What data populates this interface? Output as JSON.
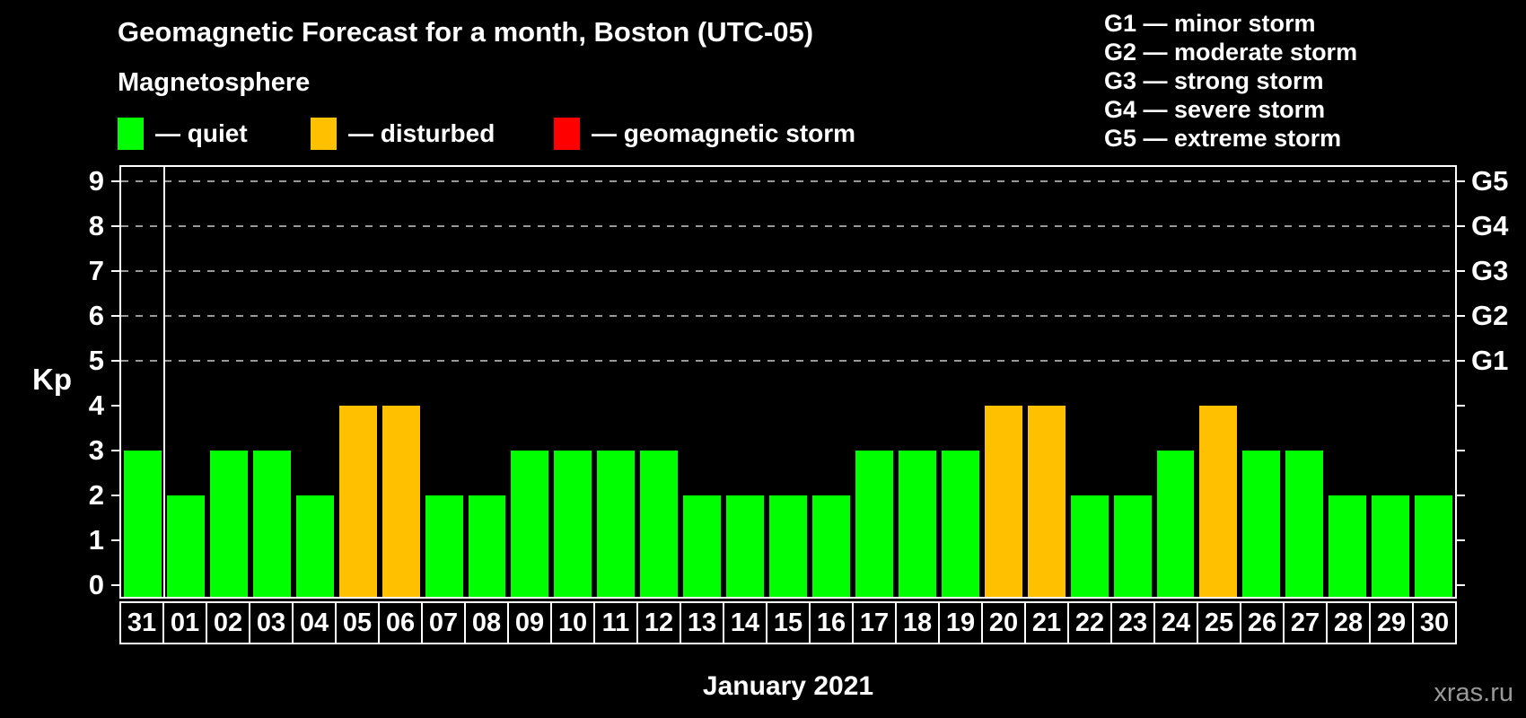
{
  "header": {
    "title": "Geomagnetic Forecast for a month, Boston (UTC-05)",
    "subtitle": "Magnetosphere"
  },
  "legend": {
    "items": [
      {
        "key": "quiet",
        "label": "— quiet",
        "color": "#00ff00"
      },
      {
        "key": "disturbed",
        "label": "— disturbed",
        "color": "#ffc000"
      },
      {
        "key": "storm",
        "label": "— geomagnetic storm",
        "color": "#ff0000"
      }
    ]
  },
  "g_legend": {
    "lines": [
      "G1 — minor storm",
      "G2 — moderate storm",
      "G3 — strong storm",
      "G4 — severe storm",
      "G5 — extreme storm"
    ]
  },
  "chart_data": {
    "type": "bar",
    "title": "Geomagnetic Forecast for a month, Boston (UTC-05)",
    "xlabel": "January 2021",
    "ylabel": "Kp",
    "ylim": [
      0,
      9
    ],
    "yticks": [
      0,
      1,
      2,
      3,
      4,
      5,
      6,
      7,
      8,
      9
    ],
    "gridlines_at": [
      5,
      6,
      7,
      8,
      9
    ],
    "grid": "dashed, horizontal, only at storm levels 5-9",
    "legend_position": "top-left",
    "right_axis_labels": [
      {
        "kp": 5,
        "label": "G1"
      },
      {
        "kp": 6,
        "label": "G2"
      },
      {
        "kp": 7,
        "label": "G3"
      },
      {
        "kp": 8,
        "label": "G4"
      },
      {
        "kp": 9,
        "label": "G5"
      }
    ],
    "categories": [
      "31",
      "01",
      "02",
      "03",
      "04",
      "05",
      "06",
      "07",
      "08",
      "09",
      "10",
      "11",
      "12",
      "13",
      "14",
      "15",
      "16",
      "17",
      "18",
      "19",
      "20",
      "21",
      "22",
      "23",
      "24",
      "25",
      "26",
      "27",
      "28",
      "29",
      "30"
    ],
    "values": [
      3,
      2,
      3,
      3,
      2,
      4,
      4,
      2,
      2,
      3,
      3,
      3,
      3,
      2,
      2,
      2,
      2,
      3,
      3,
      3,
      4,
      4,
      2,
      2,
      3,
      4,
      3,
      3,
      2,
      2,
      2
    ],
    "statuses": [
      "quiet",
      "quiet",
      "quiet",
      "quiet",
      "quiet",
      "disturbed",
      "disturbed",
      "quiet",
      "quiet",
      "quiet",
      "quiet",
      "quiet",
      "quiet",
      "quiet",
      "quiet",
      "quiet",
      "quiet",
      "quiet",
      "quiet",
      "quiet",
      "disturbed",
      "disturbed",
      "quiet",
      "quiet",
      "quiet",
      "disturbed",
      "quiet",
      "quiet",
      "quiet",
      "quiet",
      "quiet"
    ],
    "month_separator_after_index": 0
  },
  "colors": {
    "background": "#000000",
    "axis": "#ffffff",
    "grid": "#999999",
    "text": "#ffffff",
    "quiet": "#00ff00",
    "disturbed": "#ffc000",
    "storm": "#ff0000",
    "watermark": "#999999"
  },
  "footer": {
    "x_axis_title": "January 2021",
    "watermark": "xras.ru"
  }
}
